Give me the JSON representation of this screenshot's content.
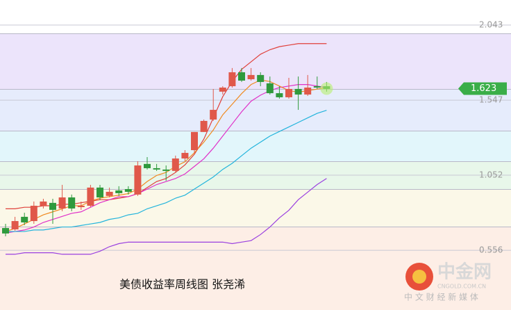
{
  "chart_data": {
    "type": "candlestick",
    "caption": "美债收益率周线图 张尧浠",
    "last_price": 1.623,
    "up_color": "#e0584a",
    "down_color": "#2f9a3d",
    "ylim": [
      0.162,
      2.208
    ],
    "yticks": [
      2.043,
      1.547,
      1.052,
      0.556
    ],
    "grid": true,
    "open": [
      0.703,
      0.694,
      0.777,
      0.749,
      0.85,
      0.869,
      0.832,
      0.905,
      0.841,
      0.85,
      0.97,
      0.915,
      0.951,
      0.96,
      0.924,
      1.126,
      1.098,
      1.089,
      1.08,
      1.162,
      1.217,
      1.337,
      1.419,
      1.603,
      1.639,
      1.731,
      1.685,
      1.713,
      1.658,
      1.593,
      1.566,
      1.621,
      1.584,
      1.639,
      1.639
    ],
    "high": [
      0.731,
      0.777,
      0.804,
      0.878,
      0.896,
      0.896,
      0.988,
      0.924,
      0.878,
      0.988,
      0.988,
      0.97,
      0.979,
      0.979,
      1.144,
      1.171,
      1.126,
      1.116,
      1.181,
      1.217,
      1.337,
      1.419,
      1.621,
      1.639,
      1.759,
      1.759,
      1.759,
      1.731,
      1.703,
      1.639,
      1.694,
      1.703,
      1.713,
      1.703,
      1.667
    ],
    "low": [
      0.648,
      0.685,
      0.722,
      0.731,
      0.832,
      0.731,
      0.814,
      0.814,
      0.823,
      0.841,
      0.887,
      0.905,
      0.915,
      0.924,
      0.915,
      1.089,
      1.08,
      1.015,
      1.07,
      1.144,
      1.199,
      1.337,
      1.41,
      1.584,
      1.63,
      1.667,
      1.676,
      1.639,
      1.584,
      1.557,
      1.557,
      1.483,
      1.575,
      1.621,
      1.603
    ],
    "close": [
      0.667,
      0.749,
      0.74,
      0.85,
      0.878,
      0.823,
      0.905,
      0.832,
      0.85,
      0.97,
      0.905,
      0.942,
      0.933,
      0.942,
      1.116,
      1.098,
      1.089,
      1.08,
      1.162,
      1.199,
      1.337,
      1.41,
      1.483,
      1.63,
      1.731,
      1.676,
      1.713,
      1.667,
      1.593,
      1.566,
      1.621,
      1.584,
      1.63,
      1.63,
      1.621
    ],
    "series": [
      {
        "color": "#e0403a",
        "values": [
          0.83,
          0.83,
          0.84,
          0.84,
          0.85,
          0.85,
          0.86,
          0.86,
          0.87,
          0.88,
          0.89,
          0.89,
          0.9,
          0.91,
          0.93,
          0.97,
          1.01,
          1.03,
          1.07,
          1.12,
          1.19,
          1.29,
          1.43,
          1.57,
          1.67,
          1.75,
          1.8,
          1.85,
          1.88,
          1.9,
          1.91,
          1.92,
          1.92,
          1.92,
          1.92
        ]
      },
      {
        "color": "#e030c8",
        "values": [
          0.67,
          0.68,
          0.69,
          0.71,
          0.74,
          0.76,
          0.78,
          0.8,
          0.81,
          0.84,
          0.87,
          0.89,
          0.91,
          0.91,
          0.93,
          0.96,
          0.99,
          1.01,
          1.03,
          1.06,
          1.11,
          1.16,
          1.23,
          1.31,
          1.39,
          1.47,
          1.54,
          1.58,
          1.61,
          1.63,
          1.64,
          1.65,
          1.65,
          1.64,
          1.63
        ]
      },
      {
        "color": "#f08a20",
        "values": [
          0.68,
          0.7,
          0.73,
          0.76,
          0.79,
          0.81,
          0.83,
          0.85,
          0.85,
          0.88,
          0.9,
          0.91,
          0.92,
          0.93,
          0.96,
          1.01,
          1.05,
          1.07,
          1.11,
          1.14,
          1.2,
          1.27,
          1.35,
          1.45,
          1.52,
          1.59,
          1.65,
          1.68,
          1.67,
          1.64,
          1.61,
          1.6,
          1.61,
          1.62,
          1.63
        ]
      },
      {
        "color": "#22b4dc",
        "values": [
          0.68,
          0.68,
          0.68,
          0.69,
          0.69,
          0.7,
          0.71,
          0.71,
          0.72,
          0.73,
          0.74,
          0.76,
          0.77,
          0.79,
          0.8,
          0.83,
          0.85,
          0.87,
          0.9,
          0.92,
          0.96,
          1.0,
          1.04,
          1.09,
          1.13,
          1.18,
          1.23,
          1.27,
          1.31,
          1.34,
          1.37,
          1.4,
          1.43,
          1.46,
          1.48
        ]
      },
      {
        "color": "#9a40e0",
        "values": [
          0.53,
          0.53,
          0.54,
          0.54,
          0.54,
          0.54,
          0.53,
          0.53,
          0.53,
          0.53,
          0.55,
          0.58,
          0.6,
          0.61,
          0.61,
          0.61,
          0.61,
          0.61,
          0.61,
          0.61,
          0.61,
          0.61,
          0.61,
          0.61,
          0.6,
          0.61,
          0.62,
          0.66,
          0.71,
          0.77,
          0.82,
          0.89,
          0.94,
          0.99,
          1.03
        ]
      }
    ]
  },
  "watermark": {
    "name": "中金网",
    "site": "CNGOLD.COM.CN",
    "slogan": "中 文 财 经 新 媒 体"
  }
}
